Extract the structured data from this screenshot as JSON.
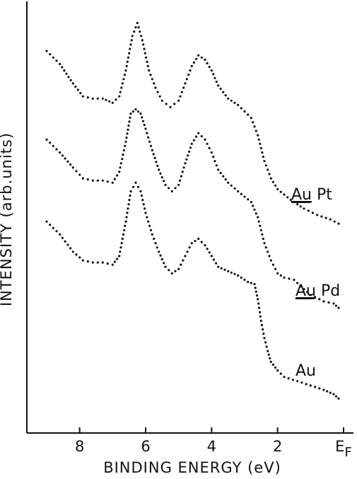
{
  "chart_data": {
    "type": "scatter",
    "xlabel": "BINDING ENERGY (eV)",
    "ylabel": "INTENSITY (arb.units)",
    "x_reversed": true,
    "xlim": [
      9.6,
      -0.3
    ],
    "xticks": [
      {
        "value": 8,
        "label": "8"
      },
      {
        "value": 6,
        "label": "6"
      },
      {
        "value": 4,
        "label": "4"
      },
      {
        "value": 2,
        "label": "2"
      },
      {
        "value": 0,
        "label": "E",
        "sub": "F"
      }
    ],
    "ylim": [
      0,
      100
    ],
    "series": [
      {
        "name": "Au Pt",
        "name_parts": {
          "underlined": "Au",
          "rest": " Pt"
        },
        "points": [
          [
            9.0,
            88.5
          ],
          [
            8.6,
            85.5
          ],
          [
            8.2,
            81
          ],
          [
            7.9,
            78
          ],
          [
            7.6,
            77.5
          ],
          [
            7.3,
            77.5
          ],
          [
            7.0,
            76.5
          ],
          [
            6.8,
            78
          ],
          [
            6.6,
            84
          ],
          [
            6.4,
            92
          ],
          [
            6.25,
            95
          ],
          [
            6.1,
            91
          ],
          [
            5.9,
            84
          ],
          [
            5.7,
            80
          ],
          [
            5.5,
            77
          ],
          [
            5.25,
            75.5
          ],
          [
            5.0,
            77
          ],
          [
            4.8,
            81
          ],
          [
            4.6,
            85
          ],
          [
            4.4,
            87.5
          ],
          [
            4.2,
            86.5
          ],
          [
            4.0,
            84
          ],
          [
            3.8,
            80.5
          ],
          [
            3.5,
            77.5
          ],
          [
            3.2,
            76
          ],
          [
            2.8,
            73
          ],
          [
            2.6,
            69
          ],
          [
            2.4,
            63
          ],
          [
            2.2,
            59
          ],
          [
            2.0,
            56.5
          ],
          [
            1.6,
            54
          ],
          [
            1.2,
            52
          ],
          [
            0.8,
            50.5
          ],
          [
            0.4,
            49.5
          ],
          [
            0.15,
            48.5
          ]
        ]
      },
      {
        "name": "Au Pd",
        "name_parts": {
          "underlined": "Au",
          "rest": " Pd"
        },
        "points": [
          [
            9.0,
            68
          ],
          [
            8.6,
            65
          ],
          [
            8.2,
            61.5
          ],
          [
            7.9,
            59
          ],
          [
            7.6,
            58.5
          ],
          [
            7.3,
            58.5
          ],
          [
            7.0,
            58
          ],
          [
            6.8,
            60.5
          ],
          [
            6.6,
            67.5
          ],
          [
            6.45,
            74
          ],
          [
            6.3,
            75
          ],
          [
            6.15,
            74
          ],
          [
            6.0,
            70.5
          ],
          [
            5.8,
            65.5
          ],
          [
            5.6,
            61
          ],
          [
            5.4,
            57.5
          ],
          [
            5.2,
            56
          ],
          [
            5.0,
            57.5
          ],
          [
            4.8,
            62.5
          ],
          [
            4.6,
            67
          ],
          [
            4.4,
            69.5
          ],
          [
            4.2,
            68
          ],
          [
            4.0,
            65
          ],
          [
            3.8,
            61
          ],
          [
            3.5,
            58
          ],
          [
            3.2,
            56
          ],
          [
            2.8,
            53.5
          ],
          [
            2.6,
            50
          ],
          [
            2.4,
            44
          ],
          [
            2.2,
            40
          ],
          [
            2.0,
            37
          ],
          [
            1.8,
            36
          ],
          [
            1.5,
            35.5
          ],
          [
            1.3,
            34
          ],
          [
            1.0,
            32
          ],
          [
            0.6,
            30.5
          ],
          [
            0.3,
            30
          ],
          [
            0.15,
            29
          ]
        ]
      },
      {
        "name": "Au",
        "name_parts": {
          "underlined": "",
          "rest": "Au"
        },
        "points": [
          [
            9.0,
            49
          ],
          [
            8.6,
            46
          ],
          [
            8.2,
            42
          ],
          [
            7.9,
            40
          ],
          [
            7.6,
            39.5
          ],
          [
            7.3,
            39.5
          ],
          [
            7.0,
            39
          ],
          [
            6.8,
            41
          ],
          [
            6.6,
            49
          ],
          [
            6.45,
            56
          ],
          [
            6.3,
            58
          ],
          [
            6.15,
            56
          ],
          [
            6.0,
            51
          ],
          [
            5.8,
            46
          ],
          [
            5.6,
            42
          ],
          [
            5.4,
            38.5
          ],
          [
            5.2,
            37
          ],
          [
            5.0,
            38
          ],
          [
            4.8,
            41
          ],
          [
            4.6,
            44
          ],
          [
            4.4,
            45
          ],
          [
            4.2,
            43.5
          ],
          [
            4.0,
            41
          ],
          [
            3.8,
            38.5
          ],
          [
            3.5,
            37.5
          ],
          [
            3.2,
            36.5
          ],
          [
            2.9,
            35
          ],
          [
            2.7,
            34.5
          ],
          [
            2.6,
            31
          ],
          [
            2.5,
            26
          ],
          [
            2.4,
            22
          ],
          [
            2.3,
            19
          ],
          [
            2.2,
            16.5
          ],
          [
            2.0,
            14.5
          ],
          [
            1.8,
            13
          ],
          [
            1.4,
            12
          ],
          [
            1.0,
            11
          ],
          [
            0.6,
            10
          ],
          [
            0.3,
            9
          ],
          [
            0.15,
            8
          ]
        ]
      }
    ]
  }
}
